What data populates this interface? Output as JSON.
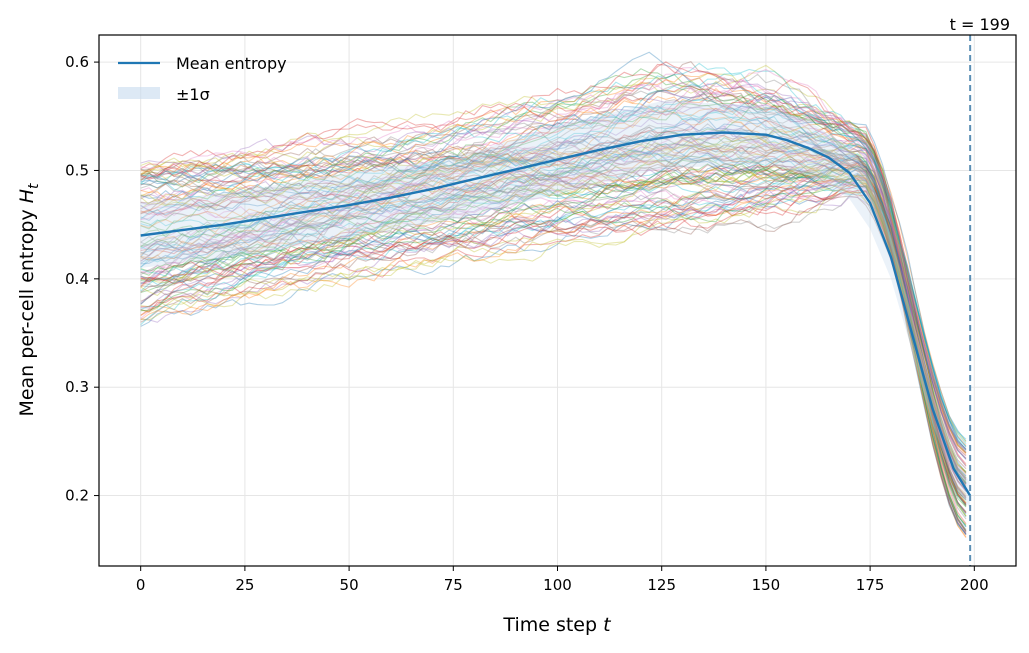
{
  "chart_data": {
    "type": "line",
    "title": "",
    "xlabel_text": "Time step",
    "xlabel_var": "t",
    "ylabel_text": "Mean per-cell entropy",
    "ylabel_var": "H",
    "ylabel_sub": "t",
    "xlim": [
      -10,
      210
    ],
    "ylim": [
      0.135,
      0.625
    ],
    "xticks": [
      0,
      25,
      50,
      75,
      100,
      125,
      150,
      175,
      200
    ],
    "xtick_labels": [
      "0",
      "25",
      "50",
      "75",
      "100",
      "125",
      "150",
      "175",
      "200"
    ],
    "yticks": [
      0.2,
      0.3,
      0.4,
      0.5,
      0.6
    ],
    "ytick_labels": [
      "0.2",
      "0.3",
      "0.4",
      "0.5",
      "0.6"
    ],
    "grid": true,
    "legend_position": "top-left",
    "legend": {
      "mean_label": "Mean entropy",
      "sigma_label": "±1σ"
    },
    "annotation": {
      "x": 199,
      "label": "t = 199"
    },
    "mean_series": {
      "name": "Mean entropy",
      "color": "#1f77b4",
      "x": [
        0,
        10,
        20,
        30,
        40,
        50,
        60,
        70,
        80,
        90,
        100,
        110,
        120,
        130,
        140,
        150,
        155,
        160,
        165,
        170,
        175,
        180,
        185,
        190,
        195,
        199
      ],
      "y": [
        0.44,
        0.445,
        0.45,
        0.456,
        0.462,
        0.468,
        0.475,
        0.483,
        0.492,
        0.501,
        0.51,
        0.519,
        0.527,
        0.533,
        0.535,
        0.533,
        0.528,
        0.521,
        0.512,
        0.498,
        0.47,
        0.42,
        0.35,
        0.28,
        0.225,
        0.2
      ]
    },
    "sigma_band": {
      "x": [
        0,
        25,
        50,
        75,
        100,
        125,
        150,
        160,
        170,
        175,
        180,
        185,
        190,
        195,
        199
      ],
      "lower": [
        0.41,
        0.422,
        0.438,
        0.455,
        0.478,
        0.502,
        0.506,
        0.496,
        0.474,
        0.446,
        0.4,
        0.334,
        0.266,
        0.213,
        0.188
      ],
      "upper": [
        0.47,
        0.482,
        0.498,
        0.511,
        0.542,
        0.564,
        0.56,
        0.546,
        0.522,
        0.494,
        0.44,
        0.366,
        0.294,
        0.237,
        0.212
      ]
    },
    "ensemble": {
      "count": 120,
      "alpha": 0.35,
      "start_range": [
        0.36,
        0.505
      ],
      "peak_range": [
        0.45,
        0.6
      ],
      "end_range": [
        0.16,
        0.25
      ],
      "colors": [
        "#1f77b4",
        "#ff7f0e",
        "#2ca02c",
        "#d62728",
        "#9467bd",
        "#8c564b",
        "#e377c2",
        "#7f7f7f",
        "#bcbd22",
        "#17becf"
      ]
    },
    "colors": {
      "mean": "#1f77b4",
      "band": "#c6dbef",
      "vline": "#5b8fb6",
      "grid": "#e6e6e6",
      "axis": "#000000"
    }
  }
}
